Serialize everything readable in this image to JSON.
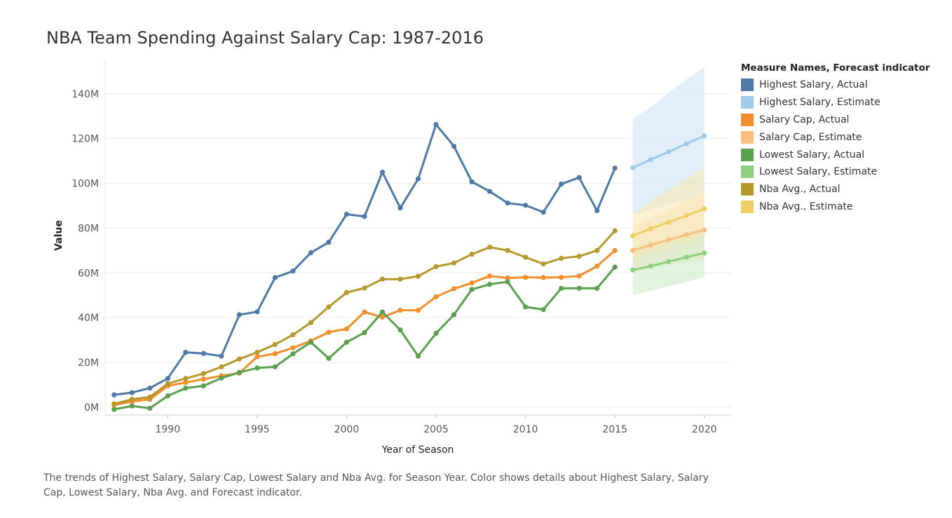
{
  "chart_data": {
    "type": "line",
    "title": "NBA Team Spending Against Salary Cap: 1987-2016",
    "xlabel": "Year of Season",
    "ylabel": "Value",
    "xlim": [
      1986.5,
      2021.5
    ],
    "ylim": [
      -3500000,
      155000000
    ],
    "x_ticks": [
      1990,
      1995,
      2000,
      2005,
      2010,
      2015,
      2020
    ],
    "x_tick_labels": [
      "1990",
      "1995",
      "2000",
      "2005",
      "2010",
      "2015",
      "2020"
    ],
    "y_ticks": [
      0,
      20000000,
      40000000,
      60000000,
      80000000,
      100000000,
      120000000,
      140000000
    ],
    "y_tick_labels": [
      "0M",
      "20M",
      "40M",
      "60M",
      "80M",
      "100M",
      "120M",
      "140M"
    ],
    "grid": {
      "horizontal": true,
      "vertical": false
    },
    "legend_position": "right",
    "legend_title": "Measure Names, Forecast indicator",
    "series": [
      {
        "name": "Highest Salary, Actual",
        "color": "#4e79a7",
        "x": [
          1987,
          1988,
          1989,
          1990,
          1991,
          1992,
          1993,
          1994,
          1995,
          1996,
          1997,
          1998,
          1999,
          2000,
          2001,
          2002,
          2003,
          2004,
          2005,
          2006,
          2007,
          2008,
          2009,
          2010,
          2011,
          2012,
          2013,
          2014,
          2015
        ],
        "values": [
          5500000,
          6500000,
          8500000,
          12800000,
          24500000,
          24000000,
          22800000,
          41300000,
          42600000,
          57900000,
          60800000,
          69000000,
          73700000,
          86200000,
          85200000,
          105000000,
          89000000,
          102000000,
          126300000,
          116600000,
          100700000,
          96400000,
          91200000,
          90200000,
          87100000,
          99700000,
          102600000,
          87800000,
          106800000
        ]
      },
      {
        "name": "Highest Salary, Estimate",
        "color": "#9fcbe9",
        "band_color": "#cfe5f5",
        "x": [
          2016,
          2017,
          2018,
          2019,
          2020
        ],
        "values": [
          107000000,
          110600000,
          114100000,
          117700000,
          121200000
        ],
        "band_low": [
          85800000,
          88200000,
          90800000,
          92200000,
          95700000
        ],
        "band_high": [
          128800000,
          134000000,
          140500000,
          146500000,
          152000000
        ]
      },
      {
        "name": "Salary Cap, Actual",
        "color": "#f28e2b",
        "x": [
          1987,
          1988,
          1989,
          1990,
          1991,
          1992,
          1993,
          1994,
          1995,
          1996,
          1997,
          1998,
          1999,
          2000,
          2001,
          2002,
          2003,
          2004,
          2005,
          2006,
          2007,
          2008,
          2009,
          2010,
          2011,
          2012,
          2013,
          2014,
          2015
        ],
        "values": [
          1000000,
          2500000,
          3500000,
          9500000,
          11000000,
          12500000,
          14000000,
          15200000,
          22500000,
          23900000,
          26500000,
          29600000,
          33500000,
          35000000,
          42500000,
          40200000,
          43300000,
          43300000,
          49300000,
          52900000,
          55500000,
          58600000,
          57700000,
          58000000,
          57900000,
          58000000,
          58600000,
          63000000,
          70000000
        ]
      },
      {
        "name": "Salary Cap, Estimate",
        "color": "#ffbe7d",
        "band_color": "#fde3c3",
        "x": [
          2016,
          2017,
          2018,
          2019,
          2020
        ],
        "values": [
          70000000,
          72400000,
          74800000,
          77000000,
          79200000
        ],
        "band_low": [
          60000000,
          62000000,
          63700000,
          65000000,
          66200000
        ],
        "band_high": [
          81000000,
          84500000,
          88000000,
          92000000,
          96000000
        ]
      },
      {
        "name": "Lowest Salary, Actual",
        "color": "#59a14f",
        "x": [
          1987,
          1988,
          1989,
          1990,
          1991,
          1992,
          1993,
          1994,
          1995,
          1996,
          1997,
          1998,
          1999,
          2000,
          2001,
          2002,
          2003,
          2004,
          2005,
          2006,
          2007,
          2008,
          2009,
          2010,
          2011,
          2012,
          2013,
          2014,
          2015
        ],
        "values": [
          -1000000,
          500000,
          -500000,
          5000000,
          8500000,
          9500000,
          13000000,
          15500000,
          17500000,
          18000000,
          23800000,
          29000000,
          21800000,
          29000000,
          33300000,
          42500000,
          34500000,
          22800000,
          33000000,
          41300000,
          52600000,
          54900000,
          56000000,
          44800000,
          43600000,
          53100000,
          53100000,
          53100000,
          62600000
        ]
      },
      {
        "name": "Lowest Salary, Estimate",
        "color": "#8cd17d",
        "band_color": "#cfedc6",
        "x": [
          2016,
          2017,
          2018,
          2019,
          2020
        ],
        "values": [
          61300000,
          63000000,
          65000000,
          67000000,
          68900000
        ],
        "band_low": [
          50000000,
          52000000,
          54000000,
          56000000,
          58000000
        ],
        "band_high": [
          72000000,
          74000000,
          76000000,
          78000000,
          80000000
        ]
      },
      {
        "name": "Nba Avg., Actual",
        "color": "#b6992d",
        "x": [
          1987,
          1988,
          1989,
          1990,
          1991,
          1992,
          1993,
          1994,
          1995,
          1996,
          1997,
          1998,
          1999,
          2000,
          2001,
          2002,
          2003,
          2004,
          2005,
          2006,
          2007,
          2008,
          2009,
          2010,
          2011,
          2012,
          2013,
          2014,
          2015
        ],
        "values": [
          1500000,
          3500000,
          4500000,
          10500000,
          12800000,
          15000000,
          18000000,
          21500000,
          24500000,
          28000000,
          32300000,
          37800000,
          44800000,
          51200000,
          53200000,
          57200000,
          57200000,
          58500000,
          62800000,
          64400000,
          68300000,
          71500000,
          70000000,
          67000000,
          64000000,
          66500000,
          67400000,
          70000000,
          78800000
        ]
      },
      {
        "name": "Nba Avg., Estimate",
        "color": "#f1ce63",
        "band_color": "#f7e8b4",
        "x": [
          2016,
          2017,
          2018,
          2019,
          2020
        ],
        "values": [
          76600000,
          79700000,
          82600000,
          85600000,
          88600000
        ],
        "band_low": [
          66500000,
          69000000,
          71500000,
          73500000,
          76000000
        ],
        "band_high": [
          86000000,
          92000000,
          97000000,
          102000000,
          107500000
        ]
      }
    ],
    "caption": "The trends of Highest Salary, Salary Cap, Lowest Salary and Nba Avg. for Season Year.  Color shows details about Highest Salary, Salary Cap, Lowest Salary, Nba Avg. and Forecast indicator."
  }
}
